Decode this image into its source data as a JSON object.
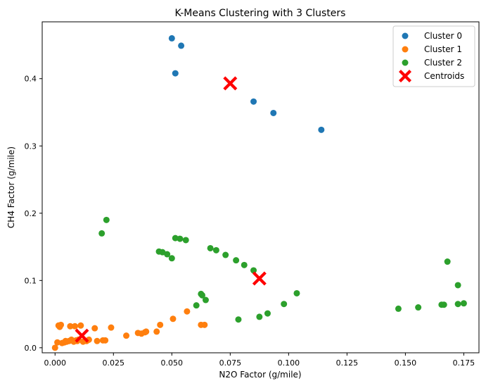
{
  "chart_data": {
    "type": "scatter",
    "title": "K-Means Clustering with 3 Clusters",
    "xlabel": "N2O Factor (g/mile)",
    "ylabel": "CH4 Factor (g/mile)",
    "xlim": [
      -0.0055,
      0.1815
    ],
    "ylim": [
      -0.0075,
      0.4845
    ],
    "xticks": [
      0.0,
      0.025,
      0.05,
      0.075,
      0.1,
      0.125,
      0.15,
      0.175
    ],
    "xtick_labels": [
      "0.000",
      "0.025",
      "0.050",
      "0.075",
      "0.100",
      "0.125",
      "0.150",
      "0.175"
    ],
    "yticks": [
      0.0,
      0.1,
      0.2,
      0.3,
      0.4
    ],
    "ytick_labels": [
      "0.0",
      "0.1",
      "0.2",
      "0.3",
      "0.4"
    ],
    "grid": false,
    "legend_position": "top-right",
    "series": [
      {
        "name": "Cluster 0",
        "color": "#1f77b4",
        "marker": "circle",
        "points": [
          [
            0.05,
            0.46
          ],
          [
            0.054,
            0.449
          ],
          [
            0.0515,
            0.408
          ],
          [
            0.085,
            0.366
          ],
          [
            0.0935,
            0.349
          ],
          [
            0.114,
            0.324
          ]
        ]
      },
      {
        "name": "Cluster 1",
        "color": "#ff7f0e",
        "marker": "circle",
        "points": [
          [
            0.0,
            0.0
          ],
          [
            0.001,
            0.008
          ],
          [
            0.0015,
            0.033
          ],
          [
            0.002,
            0.031
          ],
          [
            0.0025,
            0.034
          ],
          [
            0.003,
            0.007
          ],
          [
            0.004,
            0.008
          ],
          [
            0.0045,
            0.01
          ],
          [
            0.005,
            0.009
          ],
          [
            0.006,
            0.01
          ],
          [
            0.0065,
            0.032
          ],
          [
            0.007,
            0.012
          ],
          [
            0.008,
            0.009
          ],
          [
            0.0085,
            0.032
          ],
          [
            0.009,
            0.011
          ],
          [
            0.0095,
            0.01
          ],
          [
            0.01,
            0.012
          ],
          [
            0.011,
            0.033
          ],
          [
            0.012,
            0.009
          ],
          [
            0.0135,
            0.01
          ],
          [
            0.0145,
            0.012
          ],
          [
            0.017,
            0.029
          ],
          [
            0.018,
            0.01
          ],
          [
            0.0205,
            0.011
          ],
          [
            0.0215,
            0.011
          ],
          [
            0.024,
            0.03
          ],
          [
            0.0305,
            0.018
          ],
          [
            0.0355,
            0.022
          ],
          [
            0.037,
            0.021
          ],
          [
            0.0385,
            0.023
          ],
          [
            0.039,
            0.024
          ],
          [
            0.0435,
            0.024
          ],
          [
            0.045,
            0.034
          ],
          [
            0.0505,
            0.043
          ],
          [
            0.0565,
            0.054
          ],
          [
            0.0625,
            0.034
          ],
          [
            0.064,
            0.034
          ]
        ]
      },
      {
        "name": "Cluster 2",
        "color": "#2ca02c",
        "marker": "circle",
        "points": [
          [
            0.022,
            0.19
          ],
          [
            0.02,
            0.17
          ],
          [
            0.0515,
            0.163
          ],
          [
            0.0535,
            0.162
          ],
          [
            0.056,
            0.16
          ],
          [
            0.0445,
            0.143
          ],
          [
            0.046,
            0.142
          ],
          [
            0.048,
            0.139
          ],
          [
            0.05,
            0.133
          ],
          [
            0.0665,
            0.148
          ],
          [
            0.069,
            0.145
          ],
          [
            0.073,
            0.138
          ],
          [
            0.0775,
            0.13
          ],
          [
            0.081,
            0.123
          ],
          [
            0.085,
            0.115
          ],
          [
            0.0625,
            0.08
          ],
          [
            0.063,
            0.078
          ],
          [
            0.0645,
            0.071
          ],
          [
            0.0605,
            0.063
          ],
          [
            0.0785,
            0.042
          ],
          [
            0.0875,
            0.046
          ],
          [
            0.091,
            0.051
          ],
          [
            0.098,
            0.065
          ],
          [
            0.1035,
            0.081
          ],
          [
            0.147,
            0.058
          ],
          [
            0.1555,
            0.06
          ],
          [
            0.1655,
            0.064
          ],
          [
            0.1665,
            0.064
          ],
          [
            0.168,
            0.128
          ],
          [
            0.1725,
            0.093
          ],
          [
            0.1725,
            0.065
          ],
          [
            0.175,
            0.066
          ]
        ]
      },
      {
        "name": "Centroids",
        "color": "#ff0000",
        "marker": "x",
        "points": [
          [
            0.075,
            0.393
          ],
          [
            0.0875,
            0.103
          ],
          [
            0.0115,
            0.018
          ]
        ]
      }
    ]
  }
}
